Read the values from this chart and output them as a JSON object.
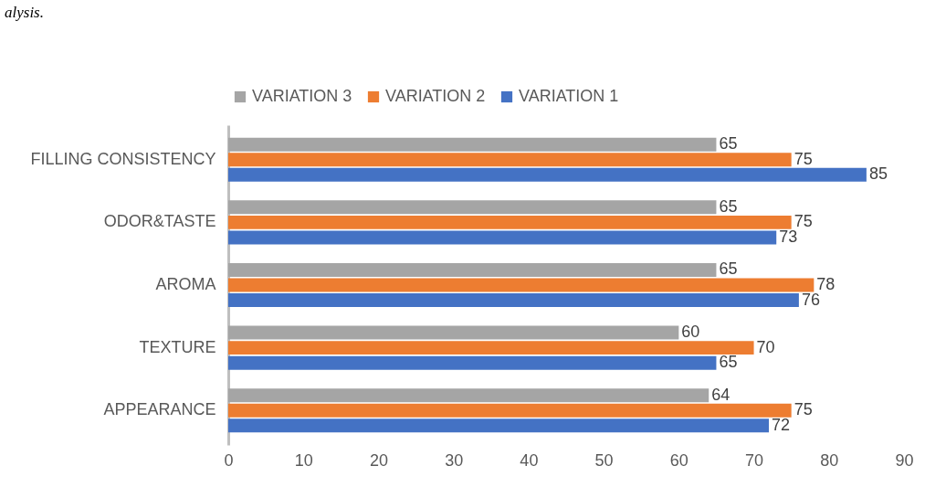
{
  "chart_data": {
    "type": "bar",
    "orientation": "horizontal",
    "categories": [
      "FILLING CONSISTENCY",
      "ODOR&TASTE",
      "AROMA",
      "TEXTURE",
      "APPEARANCE"
    ],
    "series": [
      {
        "name": "VARIATION 3",
        "color": "#a5a5a5",
        "values": [
          65,
          65,
          65,
          60,
          64
        ]
      },
      {
        "name": "VARIATION 2",
        "color": "#ed7d31",
        "values": [
          75,
          75,
          78,
          70,
          75
        ]
      },
      {
        "name": "VARIATION 1",
        "color": "#4472c4",
        "values": [
          85,
          73,
          76,
          65,
          72
        ]
      }
    ],
    "xlim": [
      0,
      90
    ],
    "xticks": [
      0,
      10,
      20,
      30,
      40,
      50,
      60,
      70,
      80,
      90
    ],
    "data_labels": true,
    "legend": "top",
    "grid": false,
    "annotations": [
      "alysis."
    ]
  }
}
